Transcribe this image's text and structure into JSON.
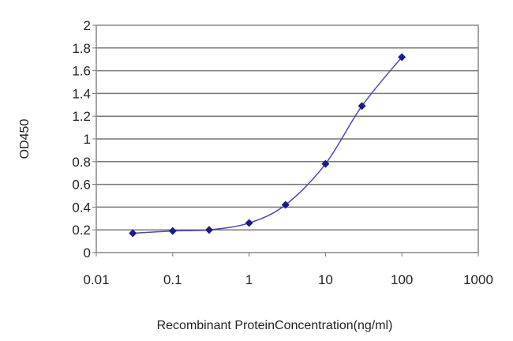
{
  "chart_data": {
    "type": "line",
    "title": "",
    "xlabel": "Recombinant ProteinConcentration(ng/ml)",
    "ylabel": "OD450",
    "x_scale": "log",
    "xlim": [
      0.01,
      1000
    ],
    "ylim": [
      0,
      2
    ],
    "x_ticks": [
      "0.01",
      "0.1",
      "1",
      "10",
      "100",
      "1000"
    ],
    "y_ticks": [
      "0",
      "0.2",
      "0.4",
      "0.6",
      "0.8",
      "1",
      "1.2",
      "1.4",
      "1.6",
      "1.8",
      "2"
    ],
    "grid": "horizontal",
    "legend": "none",
    "series": [
      {
        "color": "#1a1a8c",
        "marker": "diamond",
        "x": [
          0.03,
          0.1,
          0.3,
          1,
          3,
          10,
          30,
          100
        ],
        "y": [
          0.17,
          0.19,
          0.2,
          0.26,
          0.42,
          0.78,
          1.29,
          1.72
        ]
      }
    ]
  }
}
